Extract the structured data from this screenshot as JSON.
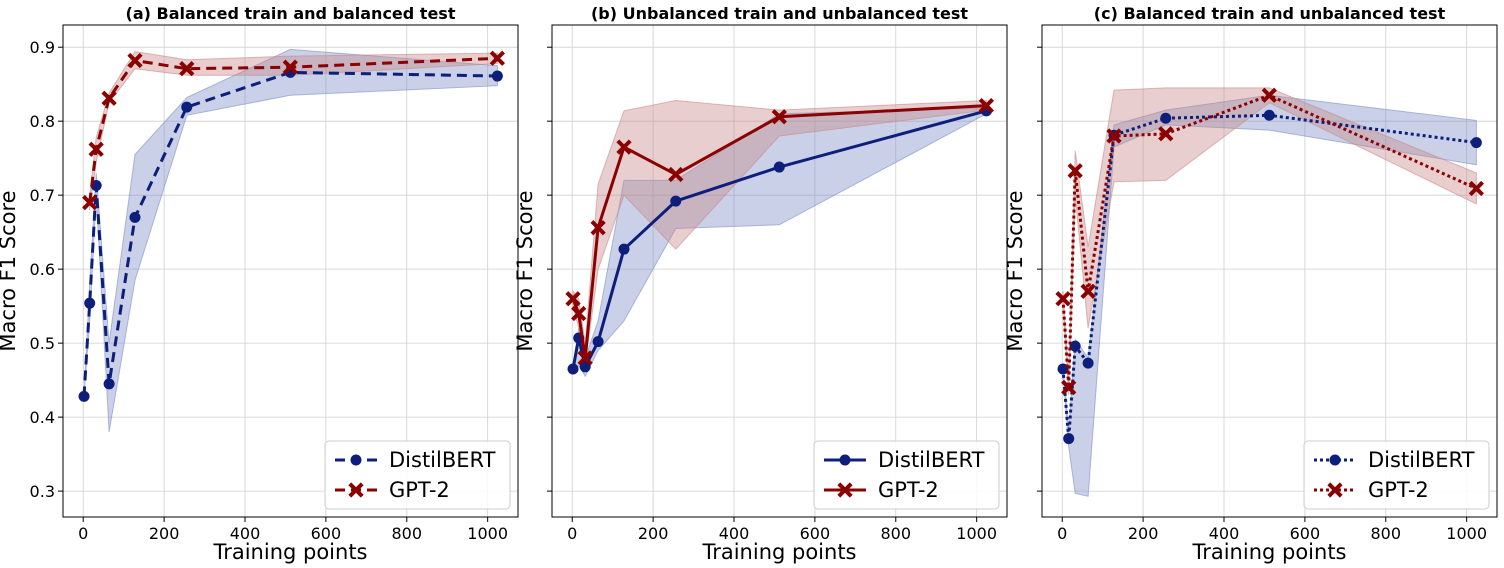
{
  "chart_data": [
    {
      "type": "line",
      "title": "(a) Balanced train and balanced test",
      "xlabel": "Training points",
      "ylabel": "Macro F1 Score",
      "xlim": [
        -50,
        1075
      ],
      "ylim": [
        0.265,
        0.93
      ],
      "xticks": [
        0,
        200,
        400,
        600,
        800,
        1000
      ],
      "yticks": [
        0.3,
        0.4,
        0.5,
        0.6,
        0.7,
        0.8,
        0.9
      ],
      "show_y_tick_labels": true,
      "line_style": "dashed",
      "grid": true,
      "legend_position": "lower-right",
      "series": [
        {
          "name": "DistilBERT",
          "color": "#0d1f7a",
          "band_color": "#7f8fc8",
          "marker": "circle",
          "x": [
            2,
            16,
            32,
            64,
            128,
            256,
            512,
            1024
          ],
          "y": [
            0.428,
            0.554,
            0.713,
            0.445,
            0.67,
            0.819,
            0.866,
            0.861
          ],
          "lower": [
            0.428,
            0.53,
            0.7,
            0.38,
            0.585,
            0.808,
            0.835,
            0.848
          ],
          "upper": [
            0.428,
            0.58,
            0.73,
            0.5,
            0.755,
            0.832,
            0.897,
            0.875
          ]
        },
        {
          "name": "GPT-2",
          "color": "#8b0000",
          "band_color": "#c98a8a",
          "marker": "x",
          "x": [
            16,
            32,
            64,
            128,
            256,
            512,
            1024
          ],
          "y": [
            0.69,
            0.762,
            0.831,
            0.882,
            0.871,
            0.873,
            0.885
          ],
          "lower": [
            0.68,
            0.745,
            0.825,
            0.871,
            0.862,
            0.862,
            0.878
          ],
          "upper": [
            0.7,
            0.778,
            0.838,
            0.894,
            0.883,
            0.888,
            0.892
          ]
        }
      ]
    },
    {
      "type": "line",
      "title": "(b) Unbalanced train and unbalanced test",
      "xlabel": "Training points",
      "ylabel": "Macro F1 Score",
      "xlim": [
        -50,
        1075
      ],
      "ylim": [
        0.265,
        0.93
      ],
      "xticks": [
        0,
        200,
        400,
        600,
        800,
        1000
      ],
      "yticks": [
        0.3,
        0.4,
        0.5,
        0.6,
        0.7,
        0.8,
        0.9
      ],
      "show_y_tick_labels": false,
      "line_style": "solid",
      "grid": true,
      "legend_position": "lower-right",
      "series": [
        {
          "name": "DistilBERT",
          "color": "#0d1f7a",
          "band_color": "#7f8fc8",
          "marker": "circle",
          "x": [
            2,
            16,
            32,
            64,
            128,
            256,
            512,
            1024
          ],
          "y": [
            0.465,
            0.507,
            0.468,
            0.502,
            0.627,
            0.692,
            0.738,
            0.814
          ],
          "lower": [
            0.46,
            0.47,
            0.455,
            0.49,
            0.53,
            0.655,
            0.66,
            0.81
          ],
          "upper": [
            0.47,
            0.52,
            0.48,
            0.53,
            0.72,
            0.72,
            0.81,
            0.818
          ]
        },
        {
          "name": "GPT-2",
          "color": "#8b0000",
          "band_color": "#c98a8a",
          "marker": "x",
          "x": [
            2,
            16,
            32,
            64,
            128,
            256,
            512,
            1024
          ],
          "y": [
            0.56,
            0.54,
            0.48,
            0.656,
            0.765,
            0.728,
            0.806,
            0.821
          ],
          "lower": [
            0.55,
            0.52,
            0.47,
            0.6,
            0.7,
            0.627,
            0.78,
            0.815
          ],
          "upper": [
            0.57,
            0.56,
            0.5,
            0.715,
            0.814,
            0.828,
            0.815,
            0.828
          ]
        }
      ]
    },
    {
      "type": "line",
      "title": "(c) Balanced train and unbalanced test",
      "xlabel": "Training points",
      "ylabel": "Macro F1 Score",
      "xlim": [
        -50,
        1075
      ],
      "ylim": [
        0.265,
        0.93
      ],
      "xticks": [
        0,
        200,
        400,
        600,
        800,
        1000
      ],
      "yticks": [
        0.3,
        0.4,
        0.5,
        0.6,
        0.7,
        0.8,
        0.9
      ],
      "show_y_tick_labels": false,
      "line_style": "dotted",
      "grid": true,
      "legend_position": "lower-right",
      "series": [
        {
          "name": "DistilBERT",
          "color": "#0d1f7a",
          "band_color": "#7f8fc8",
          "marker": "circle",
          "x": [
            2,
            16,
            32,
            64,
            128,
            256,
            512,
            1024
          ],
          "y": [
            0.465,
            0.371,
            0.496,
            0.473,
            0.781,
            0.804,
            0.808,
            0.771
          ],
          "lower": [
            0.46,
            0.36,
            0.297,
            0.293,
            0.765,
            0.795,
            0.788,
            0.741
          ],
          "upper": [
            0.47,
            0.38,
            0.505,
            0.48,
            0.795,
            0.815,
            0.835,
            0.801
          ]
        },
        {
          "name": "GPT-2",
          "color": "#8b0000",
          "band_color": "#c98a8a",
          "marker": "x",
          "x": [
            2,
            16,
            32,
            64,
            128,
            256,
            512,
            1024
          ],
          "y": [
            0.56,
            0.44,
            0.733,
            0.57,
            0.78,
            0.783,
            0.835,
            0.709
          ],
          "lower": [
            0.55,
            0.43,
            0.7,
            0.52,
            0.718,
            0.72,
            0.825,
            0.688
          ],
          "upper": [
            0.57,
            0.45,
            0.76,
            0.63,
            0.842,
            0.845,
            0.845,
            0.73
          ]
        }
      ]
    }
  ]
}
